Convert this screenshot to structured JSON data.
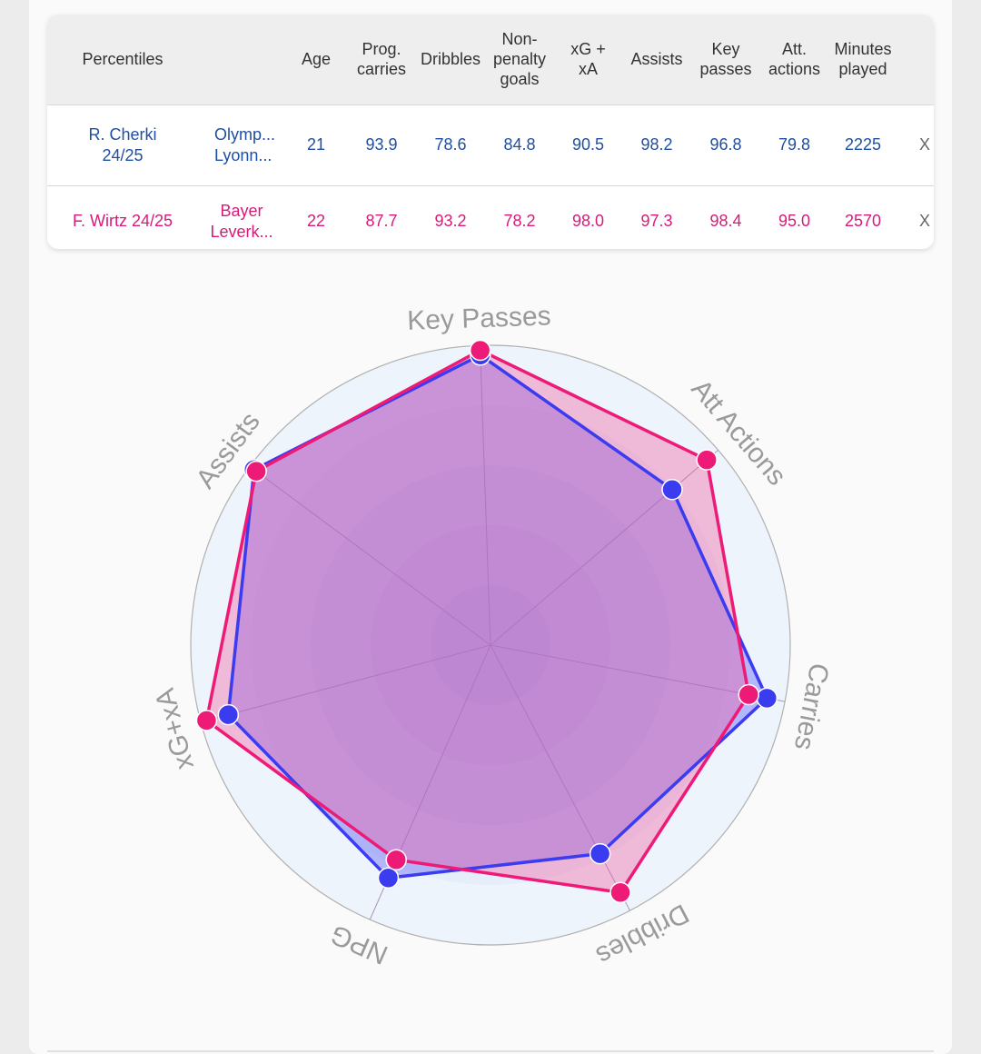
{
  "table": {
    "headers": {
      "percentiles": "Percentiles",
      "team": "",
      "age": "Age",
      "prog_carries": "Prog.\ncarries",
      "dribbles": "Dribbles",
      "npg": "Non-\npenalty\ngoals",
      "xgxa": "xG +\nxA",
      "assists": "Assists",
      "key_passes": "Key\npasses",
      "att_actions": "Att.\nactions",
      "minutes": "Minutes\nplayed"
    },
    "rows": [
      {
        "player": "R. Cherki\n24/25",
        "team": "Olymp...\nLyonn...",
        "age": "21",
        "prog_carries": "93.9",
        "dribbles": "78.6",
        "npg": "84.8",
        "xgxa": "90.5",
        "assists": "98.2",
        "key_passes": "96.8",
        "att_actions": "79.8",
        "minutes": "2225",
        "remove": "X",
        "color": "#1f4fa3"
      },
      {
        "player": "F. Wirtz 24/25",
        "team": "Bayer\nLeverk...",
        "age": "22",
        "prog_carries": "87.7",
        "dribbles": "93.2",
        "npg": "78.2",
        "xgxa": "98.0",
        "assists": "97.3",
        "key_passes": "98.4",
        "att_actions": "95.0",
        "minutes": "2570",
        "remove": "X",
        "color": "#d81b78"
      }
    ]
  },
  "chart_data": {
    "type": "radar",
    "axes": [
      "Key Passes",
      "Att Actions",
      "Carries",
      "Dribbles",
      "NPG",
      "xG+xA",
      "Assists"
    ],
    "range": [
      0,
      100
    ],
    "grid": true,
    "series": [
      {
        "name": "R. Cherki 24/25",
        "values": [
          96.8,
          79.8,
          93.9,
          78.6,
          84.8,
          90.5,
          98.2
        ],
        "color": "#3b3bf0"
      },
      {
        "name": "F. Wirtz 24/25",
        "values": [
          98.4,
          95.0,
          87.7,
          93.2,
          78.2,
          98.0,
          97.3
        ],
        "color": "#ee1a77"
      }
    ],
    "colors": {
      "series_fill_a": "#6a6af5",
      "series_fill_b": "#f25aa0",
      "ring": "#b0b0b0",
      "spoke": "#a898b8",
      "background": "#eef4fb",
      "label": "#9a9a9a"
    }
  }
}
